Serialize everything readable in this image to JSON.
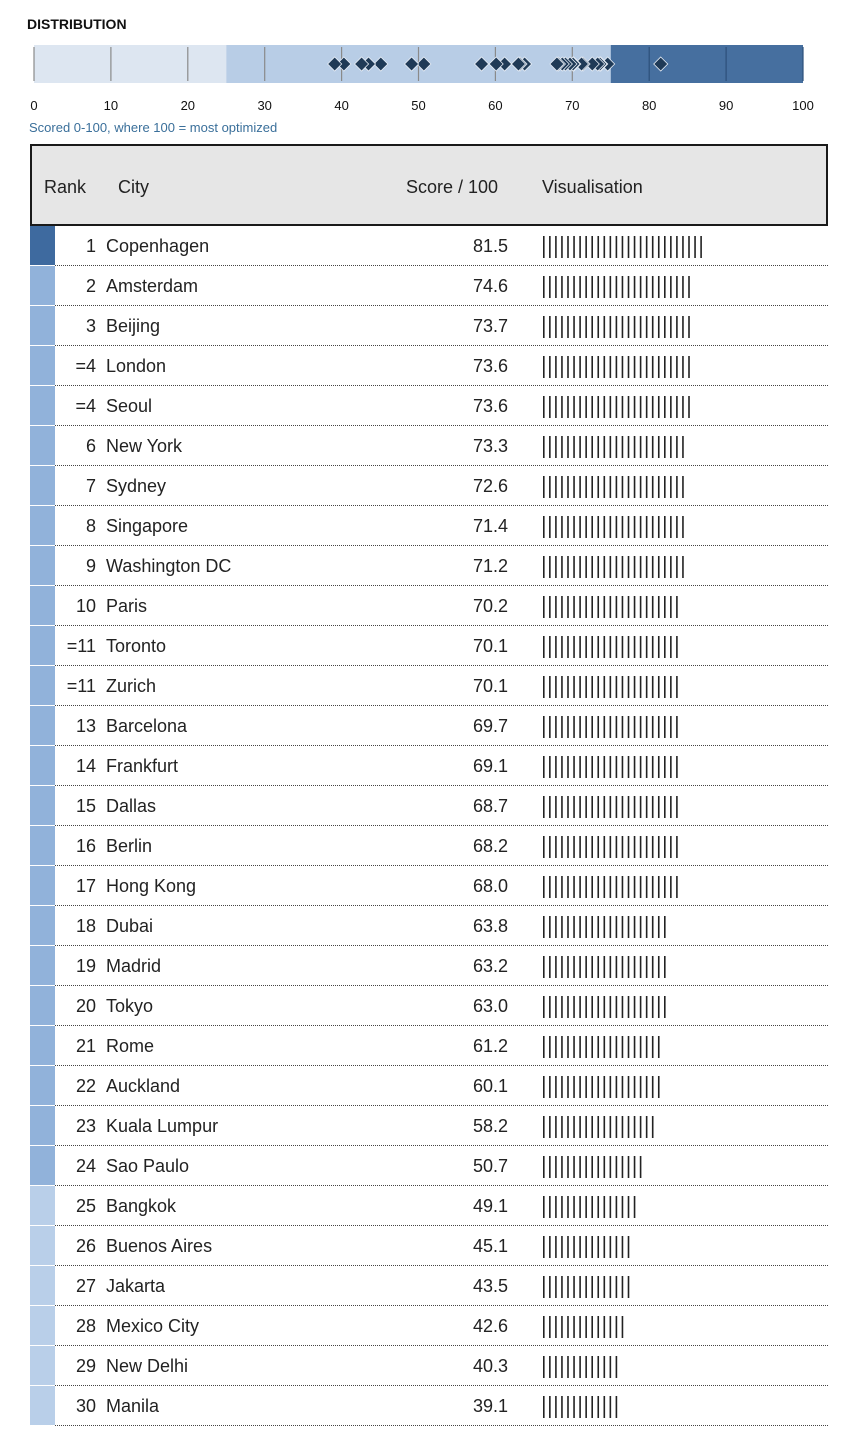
{
  "distribution": {
    "title": "DISTRIBUTION",
    "caption": "Scored 0-100, where 100 = most optimized",
    "axis_ticks": [
      0,
      10,
      20,
      30,
      40,
      50,
      60,
      70,
      80,
      90,
      100
    ],
    "band_colors": {
      "low": "#dde6f1",
      "mid": "#b8cde6",
      "high": "#466f9f"
    },
    "marker_color": "#1f3a57"
  },
  "table": {
    "headers": {
      "rank": "Rank",
      "city": "City",
      "score": "Score / 100",
      "visualisation": "Visualisation"
    },
    "strip_colors": {
      "top": "#3e6a9f",
      "mid": "#91b2da",
      "low": "#b9cfe9"
    }
  },
  "chart_data": {
    "type": "table",
    "title": "DISTRIBUTION",
    "xlabel": "Score",
    "xlim": [
      0,
      100
    ],
    "rows": [
      {
        "rank": "1",
        "city": "Copenhagen",
        "score": 81.5
      },
      {
        "rank": "2",
        "city": "Amsterdam",
        "score": 74.6
      },
      {
        "rank": "3",
        "city": "Beijing",
        "score": 73.7
      },
      {
        "rank": "=4",
        "city": "London",
        "score": 73.6
      },
      {
        "rank": "=4",
        "city": "Seoul",
        "score": 73.6
      },
      {
        "rank": "6",
        "city": "New York",
        "score": 73.3
      },
      {
        "rank": "7",
        "city": "Sydney",
        "score": 72.6
      },
      {
        "rank": "8",
        "city": "Singapore",
        "score": 71.4
      },
      {
        "rank": "9",
        "city": "Washington DC",
        "score": 71.2
      },
      {
        "rank": "10",
        "city": "Paris",
        "score": 70.2
      },
      {
        "rank": "=11",
        "city": "Toronto",
        "score": 70.1
      },
      {
        "rank": "=11",
        "city": "Zurich",
        "score": 70.1
      },
      {
        "rank": "13",
        "city": "Barcelona",
        "score": 69.7
      },
      {
        "rank": "14",
        "city": "Frankfurt",
        "score": 69.1
      },
      {
        "rank": "15",
        "city": "Dallas",
        "score": 68.7
      },
      {
        "rank": "16",
        "city": "Berlin",
        "score": 68.2
      },
      {
        "rank": "17",
        "city": "Hong Kong",
        "score": 68.0
      },
      {
        "rank": "18",
        "city": "Dubai",
        "score": 63.8
      },
      {
        "rank": "19",
        "city": "Madrid",
        "score": 63.2
      },
      {
        "rank": "20",
        "city": "Tokyo",
        "score": 63.0
      },
      {
        "rank": "21",
        "city": "Rome",
        "score": 61.2
      },
      {
        "rank": "22",
        "city": "Auckland",
        "score": 60.1
      },
      {
        "rank": "23",
        "city": "Kuala Lumpur",
        "score": 58.2
      },
      {
        "rank": "24",
        "city": "Sao Paulo",
        "score": 50.7
      },
      {
        "rank": "25",
        "city": "Bangkok",
        "score": 49.1
      },
      {
        "rank": "26",
        "city": "Buenos Aires",
        "score": 45.1
      },
      {
        "rank": "27",
        "city": "Jakarta",
        "score": 43.5
      },
      {
        "rank": "28",
        "city": "Mexico City",
        "score": 42.6
      },
      {
        "rank": "29",
        "city": "New Delhi",
        "score": 40.3
      },
      {
        "rank": "30",
        "city": "Manila",
        "score": 39.1
      }
    ]
  }
}
